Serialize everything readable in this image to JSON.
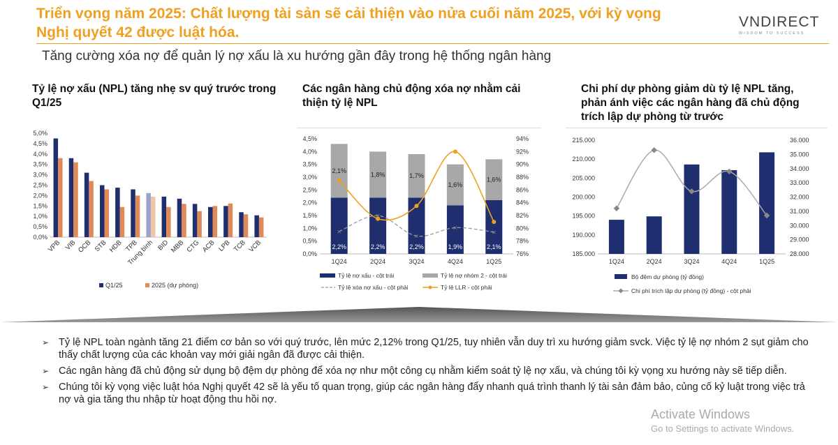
{
  "header": {
    "title": "Triển vọng năm 2025: Chất lượng tài sản sẽ cải thiện vào nửa cuối năm 2025, với kỳ vọng Nghị quyết 42 được luật hóa.",
    "logo_text": "VNDIRECT",
    "logo_tagline": "WISDOM TO SUCCESS",
    "subtitle": "Tăng cường xóa nợ để quản lý nợ xấu là xu hướng gần đây trong hệ thống ngân hàng"
  },
  "colors": {
    "accent": "#F0A020",
    "navy": "#1F2E6E",
    "salmon": "#E08A5A",
    "gray": "#A8A8A8",
    "lineGray": "#999999"
  },
  "chart_data": [
    {
      "type": "bar",
      "title": "Tỷ lệ nợ xấu (NPL) tăng nhẹ sv quý trước trong Q1/25",
      "categories": [
        "VPB",
        "VIB",
        "OCB",
        "STB",
        "HDB",
        "TPB",
        "Trung bình",
        "BID",
        "MBB",
        "CTG",
        "ACB",
        "LPB",
        "TCB",
        "VCB"
      ],
      "series": [
        {
          "name": "Q1/25",
          "values": [
            4.75,
            3.8,
            3.1,
            2.5,
            2.38,
            2.3,
            2.12,
            1.95,
            1.85,
            1.6,
            1.45,
            1.5,
            1.2,
            1.05
          ]
        },
        {
          "name": "2025 (dự phóng)",
          "values": [
            3.8,
            3.6,
            2.7,
            2.3,
            1.45,
            2.0,
            1.95,
            1.45,
            1.6,
            1.25,
            1.5,
            1.62,
            1.1,
            0.95
          ]
        }
      ],
      "yticks": [
        "0,0%",
        "0,5%",
        "1,0%",
        "1,5%",
        "2,0%",
        "2,5%",
        "3,0%",
        "3,5%",
        "4,0%",
        "4,5%",
        "5,0%"
      ],
      "ylim": [
        0,
        5
      ],
      "legend": "bottom"
    },
    {
      "type": "bar",
      "title": "Các ngân hàng chủ động xóa nợ nhằm cải thiện tỷ lệ NPL",
      "categories": [
        "1Q24",
        "2Q24",
        "3Q24",
        "4Q24",
        "1Q25"
      ],
      "series": [
        {
          "name": "Tỷ lệ nợ xấu - cột trái",
          "values": [
            2.2,
            2.2,
            2.2,
            1.9,
            2.1
          ]
        },
        {
          "name": "Tỷ lệ nợ nhóm 2 - cột trái",
          "values": [
            2.1,
            1.8,
            1.7,
            1.6,
            1.6
          ]
        },
        {
          "name": "Tỷ lệ xóa nợ xấu - cột phải",
          "values": [
            79.5,
            82.0,
            78.8,
            80.1,
            79.4
          ]
        },
        {
          "name": "Tỷ lệ LLR - cột phải",
          "values": [
            87.5,
            81.5,
            83.5,
            92.0,
            81.0
          ]
        }
      ],
      "labels_bottom": [
        "2,2%",
        "2,2%",
        "2,2%",
        "1,9%",
        "2,1%"
      ],
      "labels_top": [
        "2,1%",
        "1,8%",
        "1,7%",
        "1,6%",
        "1,6%"
      ],
      "yticks_left": [
        "0,0%",
        "0,5%",
        "1,0%",
        "1,5%",
        "2,0%",
        "2,5%",
        "3,0%",
        "3,5%",
        "4,0%",
        "4,5%"
      ],
      "yticks_right": [
        "76%",
        "78%",
        "80%",
        "82%",
        "84%",
        "86%",
        "88%",
        "90%",
        "92%",
        "94%"
      ],
      "ylim_left": [
        0,
        4.5
      ],
      "ylim_right": [
        76,
        94
      ],
      "legend": "bottom"
    },
    {
      "type": "bar",
      "title": "Chi phí dự phòng giảm dù tỷ lệ NPL tăng, phản ánh việc các ngân hàng đã chủ động trích lập dự phòng từ trước",
      "categories": [
        "1Q24",
        "2Q24",
        "3Q24",
        "4Q24",
        "1Q25"
      ],
      "series": [
        {
          "name": "Bộ đệm dự phòng (tỷ đồng)",
          "values": [
            194000,
            194900,
            208600,
            207100,
            211800
          ]
        },
        {
          "name": "Chi phí trích lập dự phòng (tỷ đồng) - cột phải",
          "values": [
            31200,
            35300,
            32400,
            33800,
            30700
          ]
        }
      ],
      "yticks_left": [
        "185.000",
        "190.000",
        "195.000",
        "200.000",
        "205.000",
        "210.000",
        "215.000"
      ],
      "yticks_right": [
        "28.000",
        "29.000",
        "30.000",
        "31.000",
        "32.000",
        "33.000",
        "34.000",
        "35.000",
        "36.000"
      ],
      "ylim_left": [
        185000,
        215000
      ],
      "ylim_right": [
        28000,
        36000
      ],
      "legend": "bottom"
    }
  ],
  "bullets": [
    "Tỷ lệ NPL toàn ngành tăng 21 điểm cơ bản so với quý trước, lên mức 2,12% trong Q1/25, tuy nhiên vẫn duy trì xu hướng giảm svck. Việc tỷ lệ nợ nhóm 2 sụt giảm cho thấy chất lượng của các khoản vay mới giải ngân đã được cải thiện.",
    "Các ngân hàng đã chủ động sử dụng bộ đệm dự phòng để xóa nợ như một công cụ nhằm kiểm soát tỷ lệ nợ xấu, và chúng tôi kỳ vọng xu hướng này sẽ tiếp diễn.",
    "Chúng tôi kỳ vọng việc luật hóa Nghị quyết 42 sẽ là yếu tố quan trọng, giúp các ngân hàng đẩy nhanh quá trình thanh lý tài sản đảm bảo, củng cố kỷ luật trong việc trả nợ và gia tăng thu nhập từ hoạt động thu hồi nợ."
  ],
  "watermark": {
    "line1": "Activate Windows",
    "line2": "Go to Settings to activate Windows."
  }
}
